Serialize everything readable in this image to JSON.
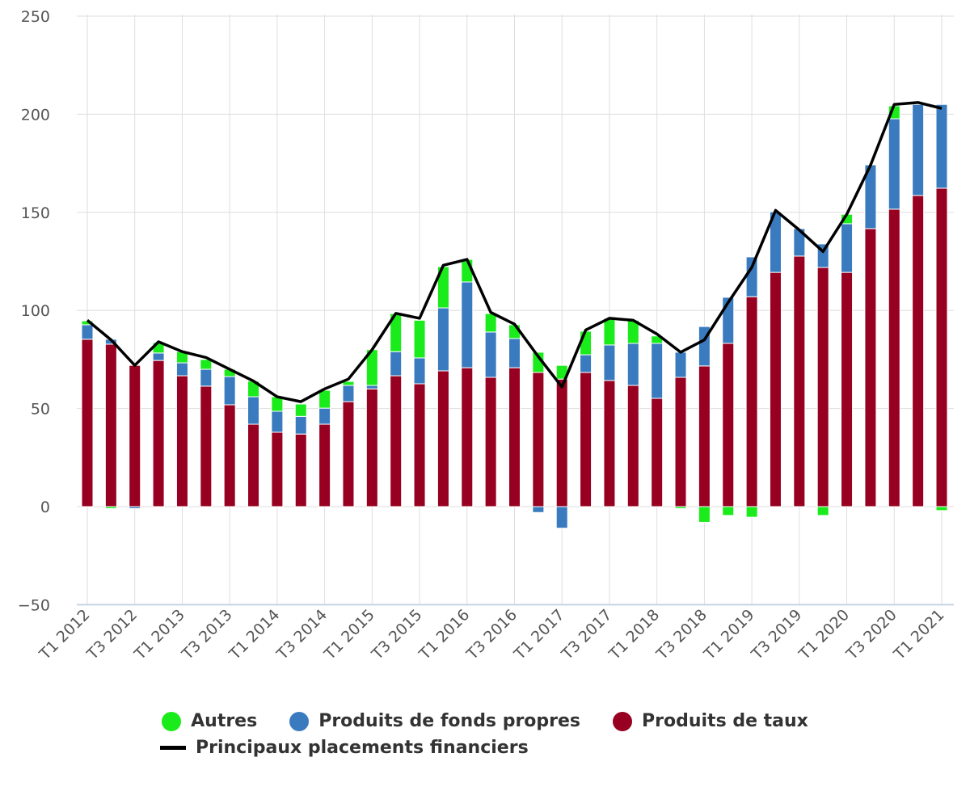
{
  "chart_data": {
    "type": "bar",
    "stacked": true,
    "ylim": [
      -50,
      250
    ],
    "yticks": [
      -50,
      0,
      50,
      100,
      150,
      200,
      250
    ],
    "grid": true,
    "legend_position": "bottom",
    "categories": [
      "T1 2012",
      "T2 2012",
      "T3 2012",
      "T4 2012",
      "T1 2013",
      "T2 2013",
      "T3 2013",
      "T4 2013",
      "T1 2014",
      "T2 2014",
      "T3 2014",
      "T4 2014",
      "T1 2015",
      "T2 2015",
      "T3 2015",
      "T4 2015",
      "T1 2016",
      "T2 2016",
      "T3 2016",
      "T4 2016",
      "T1 2017",
      "T2 2017",
      "T3 2017",
      "T4 2017",
      "T1 2018",
      "T2 2018",
      "T3 2018",
      "T4 2018",
      "T1 2019",
      "T2 2019",
      "T3 2019",
      "T4 2019",
      "T1 2020",
      "T2 2020",
      "T3 2020",
      "T4 2020",
      "T1 2021"
    ],
    "xtick_labels": [
      "T1 2012",
      "T3 2012",
      "T1 2013",
      "T3 2013",
      "T1 2014",
      "T3 2014",
      "T1 2015",
      "T3 2015",
      "T1 2016",
      "T3 2016",
      "T1 2017",
      "T3 2017",
      "T1 2018",
      "T3 2018",
      "T1 2019",
      "T3 2019",
      "T1 2020",
      "T3 2020",
      "T1 2021"
    ],
    "series": [
      {
        "name": "Produits de taux",
        "kind": "bar",
        "color": "#970020",
        "values": [
          85.3,
          82.8,
          72,
          74.5,
          66.7,
          61.4,
          51.9,
          42,
          37.9,
          37,
          42,
          53.5,
          60,
          66.7,
          62.6,
          69.2,
          70.8,
          65.9,
          70.8,
          68.4,
          65,
          68.4,
          64.3,
          61.8,
          55.2,
          65.9,
          71.7,
          83.2,
          107,
          119.4,
          127.7,
          121.9,
          119.4,
          141.7,
          151.6,
          158.6,
          162.3
        ]
      },
      {
        "name": "Produits de fonds propres",
        "kind": "bar",
        "color": "#3a7bbf",
        "values": [
          7.4,
          2.5,
          -1,
          3.8,
          6.6,
          8.6,
          14.4,
          14,
          10.7,
          9,
          8.2,
          8.3,
          1.8,
          12.3,
          13.2,
          32.1,
          43.7,
          23.1,
          14.9,
          -3,
          -11,
          9,
          18.1,
          21.4,
          28,
          12.8,
          20.1,
          23.5,
          20.3,
          30.9,
          14,
          12,
          24.8,
          32.5,
          46.1,
          46.4,
          42.7
        ]
      },
      {
        "name": "Autres",
        "kind": "bar",
        "color": "#1aeb1a",
        "values": [
          2,
          -1,
          0,
          5.3,
          5.7,
          5,
          3.7,
          8,
          7.4,
          6.3,
          9.1,
          2,
          18.2,
          19.4,
          19.2,
          21,
          11.5,
          9.4,
          7,
          10.3,
          7,
          12,
          13.6,
          11.8,
          3.8,
          -1,
          -8,
          -4.5,
          -5.4,
          0,
          0,
          -4.5,
          4.8,
          0,
          6.6,
          0,
          -2
        ]
      },
      {
        "name": "Principaux placements financiers",
        "kind": "line",
        "color": "#000000",
        "values": [
          95,
          85,
          72,
          84,
          79,
          76,
          70,
          64,
          56,
          53.5,
          60,
          65,
          80,
          98.5,
          96,
          123,
          126,
          99,
          93,
          76.5,
          61,
          90,
          96,
          95,
          88,
          78.7,
          85,
          104,
          122,
          151,
          141,
          130,
          149,
          174,
          205,
          206,
          203
        ]
      }
    ]
  },
  "legend": {
    "row1": [
      "Autres",
      "Produits de fonds propres",
      "Produits de taux"
    ],
    "row2": [
      "Principaux placements financiers"
    ]
  }
}
